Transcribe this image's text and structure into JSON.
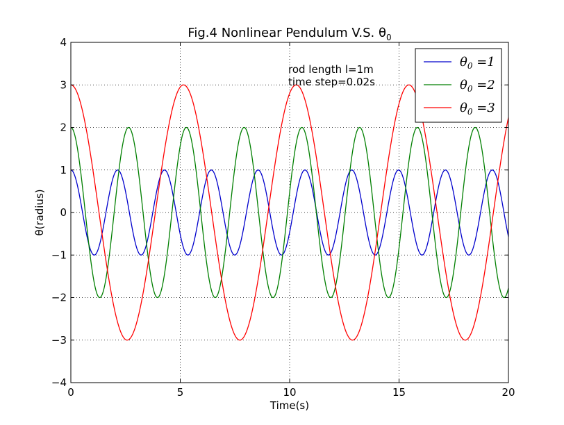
{
  "chart_data": {
    "type": "line",
    "title": "Fig.4 Nonlinear Pendulum V.S. θ",
    "title_subscript": "0",
    "xlabel": "Time(s)",
    "ylabel": "θ(radius)",
    "xlim": [
      0,
      20
    ],
    "ylim": [
      -4,
      4
    ],
    "x_ticks": [
      0,
      5,
      10,
      15,
      20
    ],
    "y_ticks": [
      -4,
      -3,
      -2,
      -1,
      0,
      1,
      2,
      3,
      4
    ],
    "x_tick_labels": [
      "0",
      "5",
      "10",
      "15",
      "20"
    ],
    "y_tick_labels": [
      "−4",
      "−3",
      "−2",
      "−1",
      "0",
      "1",
      "2",
      "3",
      "4"
    ],
    "grid": true,
    "legend_position": "top-right",
    "annotation": [
      "rod length l=1m",
      "time step=0.02s"
    ],
    "series": [
      {
        "name": "θ0 =1",
        "label_main": "θ",
        "label_sub": "0",
        "label_rest": " =1",
        "color": "#0000cc",
        "amplitude": 1,
        "period": 2.14
      },
      {
        "name": "θ0 =2",
        "label_main": "θ",
        "label_sub": "0",
        "label_rest": " =2",
        "color": "#007f00",
        "amplitude": 2,
        "period": 2.64
      },
      {
        "name": "θ0 =3",
        "label_main": "θ",
        "label_sub": "0",
        "label_rest": " =3",
        "color": "#ff0000",
        "amplitude": 3,
        "period": 5.15
      }
    ]
  }
}
